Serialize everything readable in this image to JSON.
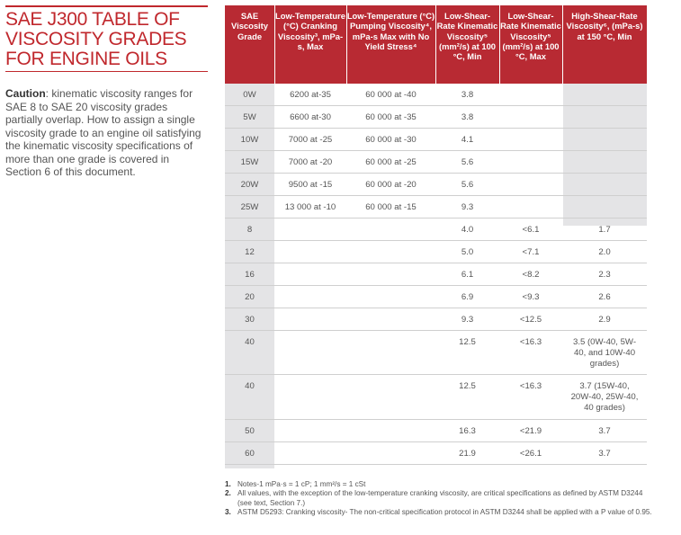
{
  "title": "SAE J300 TABLE OF VISCOSITY GRADES FOR ENGINE OILS",
  "caution": {
    "label": "Caution",
    "text": ": kinematic viscosity ranges for SAE 8 to SAE 20 viscosity grades partially overlap. How to assign a single viscosity grade to an engine oil satisfying the kinematic viscosity specifications of more than one grade is covered in Section 6 of this document."
  },
  "table": {
    "headers": [
      "SAE Viscosity Grade",
      "Low-Temperature (°C) Cranking Viscosity³, mPa-s, Max",
      "Low-Temperature (°C) Pumping Viscosity⁴, mPa-s Max with No Yield Stress⁴",
      "Low-Shear-Rate Kinematic Viscosity⁵ (mm²/s) at 100 °C, Min",
      "Low-Shear-Rate Kinematic Viscosity⁵ (mm²/s) at 100 °C, Max",
      "High-Shear-Rate Viscosity⁶, (mPa-s) at 150 °C, Min"
    ],
    "rows": [
      [
        "0W",
        "6200 at-35",
        "60 000 at -40",
        "3.8",
        "",
        ""
      ],
      [
        "5W",
        "6600 at-30",
        "60 000 at -35",
        "3.8",
        "",
        ""
      ],
      [
        "10W",
        "7000 at -25",
        "60 000 at -30",
        "4.1",
        "",
        ""
      ],
      [
        "15W",
        "7000 at -20",
        "60 000 at -25",
        "5.6",
        "",
        ""
      ],
      [
        "20W",
        "9500 at -15",
        "60 000 at -20",
        "5.6",
        "",
        ""
      ],
      [
        "25W",
        "13 000 at -10",
        "60 000 at -15",
        "9.3",
        "",
        ""
      ],
      [
        "8",
        "",
        "",
        "4.0",
        "<6.1",
        "1.7"
      ],
      [
        "12",
        "",
        "",
        "5.0",
        "<7.1",
        "2.0"
      ],
      [
        "16",
        "",
        "",
        "6.1",
        "<8.2",
        "2.3"
      ],
      [
        "20",
        "",
        "",
        "6.9",
        "<9.3",
        "2.6"
      ],
      [
        "30",
        "",
        "",
        "9.3",
        "<12.5",
        "2.9"
      ],
      [
        "40",
        "",
        "",
        "12.5",
        "<16.3",
        "3.5 (0W-40, 5W-40, and 10W-40 grades)"
      ],
      [
        "40",
        "",
        "",
        "12.5",
        "<16.3",
        "3.7 (15W-40, 20W-40, 25W-40, 40 grades)"
      ],
      [
        "50",
        "",
        "",
        "16.3",
        "<21.9",
        "3.7"
      ],
      [
        "60",
        "",
        "",
        "21.9",
        "<26.1",
        "3.7"
      ]
    ]
  },
  "notes": [
    {
      "num": "1.",
      "text": "Notes-1 mPa·s = 1 cP; 1 mm²/s = 1 cSt"
    },
    {
      "num": "2.",
      "text": "All values, with the exception of the low-temperature cranking viscosity, are critical specifications as defined by ASTM D3244 (see text, Section 7.)"
    },
    {
      "num": "3.",
      "text": "ASTM D5293: Cranking viscosity- The non-critical specification protocol in ASTM D3244 shall be applied with a P value of 0.95."
    }
  ]
}
